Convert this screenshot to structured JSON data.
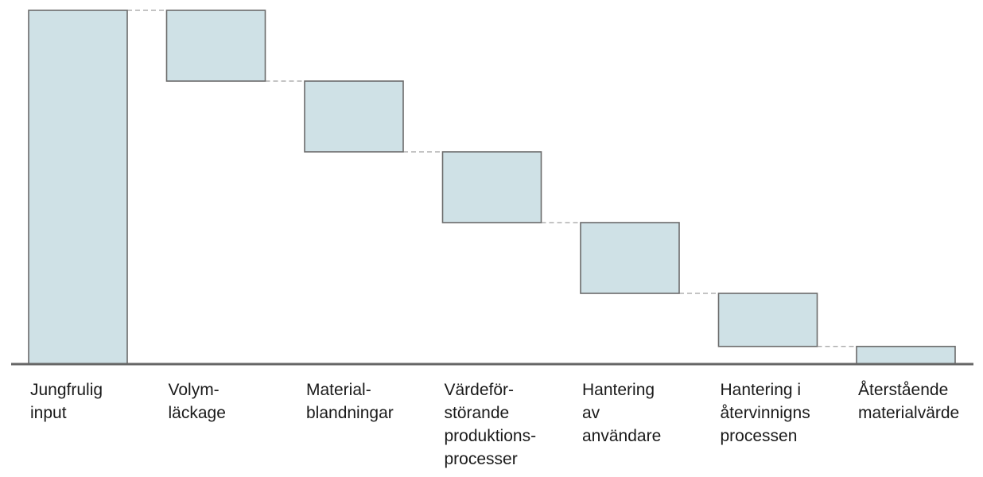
{
  "chart_data": {
    "type": "bar",
    "variant": "waterfall",
    "title": "",
    "xlabel": "",
    "ylabel": "",
    "ylim": [
      0,
      100
    ],
    "grid": false,
    "legend": "none",
    "categories": [
      [
        "Jungfrulig",
        "input"
      ],
      [
        "Volym-",
        "läckage"
      ],
      [
        "Material-",
        "blandningar"
      ],
      [
        "Värdeför-",
        "störande",
        "produktions-",
        "processer"
      ],
      [
        "Hantering",
        "av",
        "användare"
      ],
      [
        "Hantering i",
        "återvinnigns",
        "processen"
      ],
      [
        "Återstående",
        "materialvärde"
      ]
    ],
    "bars": [
      {
        "low": 0,
        "high": 100,
        "kind": "total"
      },
      {
        "low": 80,
        "high": 100,
        "kind": "decrease"
      },
      {
        "low": 60,
        "high": 80,
        "kind": "decrease"
      },
      {
        "low": 40,
        "high": 60,
        "kind": "decrease"
      },
      {
        "low": 20,
        "high": 40,
        "kind": "decrease"
      },
      {
        "low": 5,
        "high": 20,
        "kind": "decrease"
      },
      {
        "low": 0,
        "high": 5,
        "kind": "total"
      }
    ],
    "colors": {
      "bar_fill": "#cfe1e6",
      "bar_stroke": "#6b6b6b",
      "connector": "#a0a0a0",
      "axis": "#666666",
      "label": "#1a1a1a"
    }
  }
}
